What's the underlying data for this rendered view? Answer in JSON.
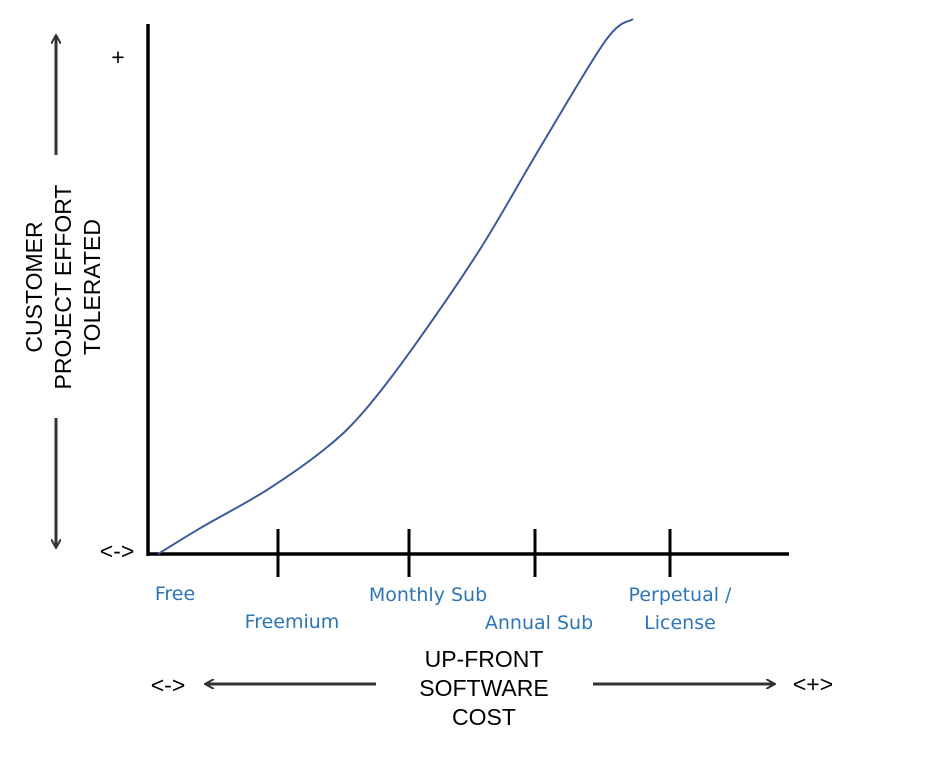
{
  "colors": {
    "curve": "#3B5A9A",
    "axis": "#000000",
    "category_text": "#2E75B6"
  },
  "chart_data": {
    "type": "line",
    "title": "",
    "xlabel": [
      "UP-FRONT",
      "SOFTWARE",
      "COST"
    ],
    "ylabel": [
      "CUSTOMER",
      "PROJECT EFFORT",
      "TOLERATED"
    ],
    "categories": [
      {
        "label": [
          "Free"
        ]
      },
      {
        "label": [
          "Freemium"
        ]
      },
      {
        "label": [
          "Monthly Sub"
        ]
      },
      {
        "label": [
          "Annual Sub"
        ]
      },
      {
        "label": [
          "Perpetual /",
          "License"
        ]
      }
    ],
    "y_high_marker": "+",
    "y_low_marker": "<->",
    "x_low_marker": "<->",
    "x_high_marker": "<+>",
    "xlim": [
      0,
      1
    ],
    "ylim": [
      0,
      1
    ],
    "grid": false,
    "legend": "none",
    "series": [
      {
        "x": [
          0,
          0.08,
          0.2,
          0.31,
          0.38,
          0.47,
          0.59,
          0.7,
          0.82,
          0.87
        ],
        "y": [
          0,
          0.05,
          0.12,
          0.2,
          0.27,
          0.39,
          0.57,
          0.76,
          0.96,
          1.0
        ]
      }
    ]
  }
}
